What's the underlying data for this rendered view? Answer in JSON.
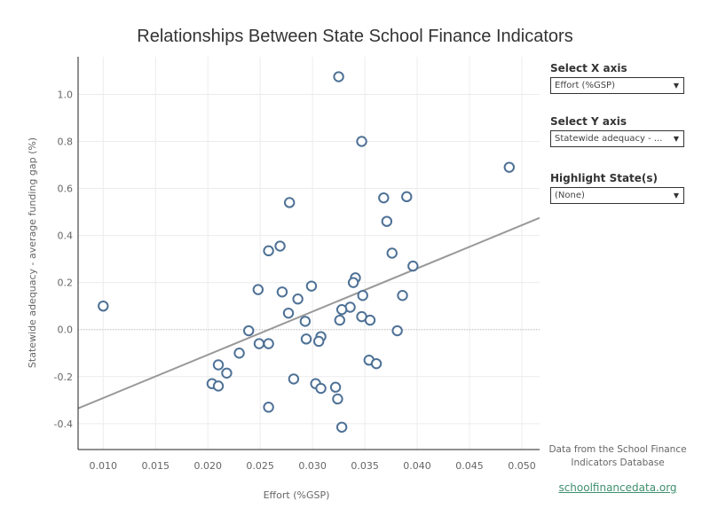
{
  "title": "Relationships Between State School Finance Indicators",
  "controls": {
    "x_axis": {
      "label": "Select X axis",
      "value": "Effort (%GSP)"
    },
    "y_axis": {
      "label": "Select Y axis",
      "value": "Statewide adequacy - ..."
    },
    "highlight": {
      "label": "Highlight State(s)",
      "value": "(None)"
    }
  },
  "footer": {
    "source_line1": "Data from the School Finance",
    "source_line2": "Indicators Database",
    "link": "schoolfinancedata.org"
  },
  "colors": {
    "marker": "#4e7196",
    "trend": "#999999",
    "grid": "#ececec",
    "link": "#3f8f6f"
  },
  "chart_data": {
    "type": "scatter",
    "title": "Relationships Between State School Finance Indicators",
    "xlabel": "Effort (%GSP)",
    "ylabel": "Statewide adequacy - average funding gap (%)",
    "xlim": [
      0.0076,
      0.0517
    ],
    "ylim": [
      -0.51,
      1.16
    ],
    "x_ticks": [
      "0.010",
      "0.015",
      "0.020",
      "0.025",
      "0.030",
      "0.035",
      "0.040",
      "0.045",
      "0.050"
    ],
    "y_ticks": [
      "-0.4",
      "-0.2",
      "0.0",
      "0.2",
      "0.4",
      "0.6",
      "0.8",
      "1.0"
    ],
    "grid": true,
    "zero_line": "dotted",
    "trendline": {
      "x": [
        0.0076,
        0.0517
      ],
      "y": [
        -0.335,
        0.475
      ]
    },
    "points": [
      {
        "x": 0.01,
        "y": 0.1
      },
      {
        "x": 0.0325,
        "y": 1.075
      },
      {
        "x": 0.0347,
        "y": 0.8
      },
      {
        "x": 0.0488,
        "y": 0.69
      },
      {
        "x": 0.0368,
        "y": 0.56
      },
      {
        "x": 0.039,
        "y": 0.565
      },
      {
        "x": 0.0278,
        "y": 0.54
      },
      {
        "x": 0.0371,
        "y": 0.46
      },
      {
        "x": 0.0376,
        "y": 0.325
      },
      {
        "x": 0.0396,
        "y": 0.27
      },
      {
        "x": 0.0258,
        "y": 0.335
      },
      {
        "x": 0.0269,
        "y": 0.355
      },
      {
        "x": 0.0341,
        "y": 0.22
      },
      {
        "x": 0.0339,
        "y": 0.2
      },
      {
        "x": 0.0248,
        "y": 0.17
      },
      {
        "x": 0.0271,
        "y": 0.16
      },
      {
        "x": 0.0299,
        "y": 0.185
      },
      {
        "x": 0.0348,
        "y": 0.145
      },
      {
        "x": 0.0386,
        "y": 0.145
      },
      {
        "x": 0.0286,
        "y": 0.13
      },
      {
        "x": 0.0336,
        "y": 0.095
      },
      {
        "x": 0.0328,
        "y": 0.085
      },
      {
        "x": 0.0277,
        "y": 0.07
      },
      {
        "x": 0.0293,
        "y": 0.035
      },
      {
        "x": 0.0347,
        "y": 0.055
      },
      {
        "x": 0.0355,
        "y": 0.04
      },
      {
        "x": 0.0326,
        "y": 0.04
      },
      {
        "x": 0.0381,
        "y": -0.005
      },
      {
        "x": 0.0239,
        "y": -0.005
      },
      {
        "x": 0.0294,
        "y": -0.04
      },
      {
        "x": 0.0308,
        "y": -0.03
      },
      {
        "x": 0.0306,
        "y": -0.05
      },
      {
        "x": 0.0249,
        "y": -0.06
      },
      {
        "x": 0.0258,
        "y": -0.06
      },
      {
        "x": 0.023,
        "y": -0.1
      },
      {
        "x": 0.0354,
        "y": -0.13
      },
      {
        "x": 0.0361,
        "y": -0.145
      },
      {
        "x": 0.021,
        "y": -0.15
      },
      {
        "x": 0.0218,
        "y": -0.185
      },
      {
        "x": 0.0282,
        "y": -0.21
      },
      {
        "x": 0.0204,
        "y": -0.23
      },
      {
        "x": 0.021,
        "y": -0.24
      },
      {
        "x": 0.0303,
        "y": -0.23
      },
      {
        "x": 0.0308,
        "y": -0.25
      },
      {
        "x": 0.0322,
        "y": -0.245
      },
      {
        "x": 0.0324,
        "y": -0.295
      },
      {
        "x": 0.0258,
        "y": -0.33
      },
      {
        "x": 0.0328,
        "y": -0.415
      }
    ]
  }
}
